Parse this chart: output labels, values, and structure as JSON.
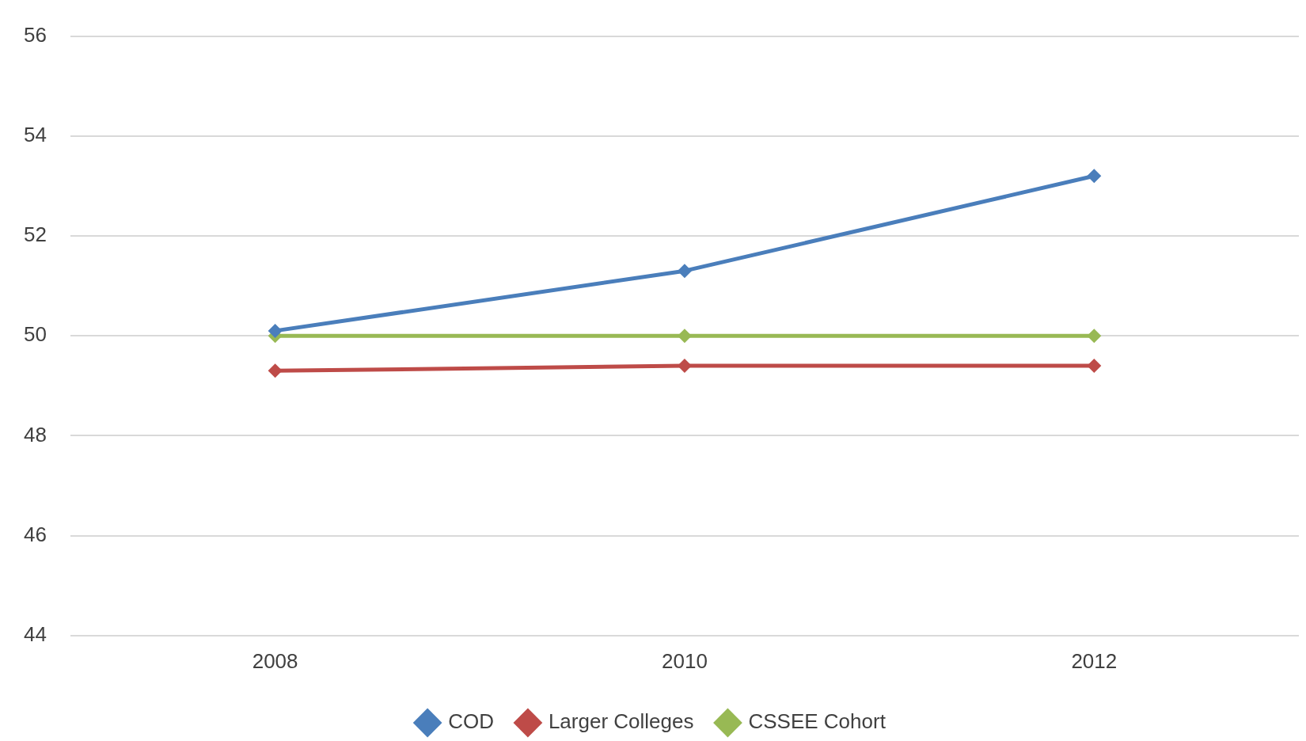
{
  "chart_data": {
    "type": "line",
    "categories": [
      "2008",
      "2010",
      "2012"
    ],
    "series": [
      {
        "name": "COD",
        "color": "#4a7ebb",
        "values": [
          50.1,
          51.3,
          53.2
        ]
      },
      {
        "name": "Larger Colleges",
        "color": "#be4b48",
        "values": [
          49.3,
          49.4,
          49.4
        ]
      },
      {
        "name": "CSSEE Cohort",
        "color": "#98b954",
        "values": [
          50,
          50,
          50
        ]
      }
    ],
    "ylim": [
      44,
      56
    ],
    "yticks": [
      44,
      46,
      48,
      50,
      52,
      54,
      56
    ],
    "grid": "y",
    "legend": "bottom",
    "marker": "diamond",
    "line_style": "solid"
  }
}
